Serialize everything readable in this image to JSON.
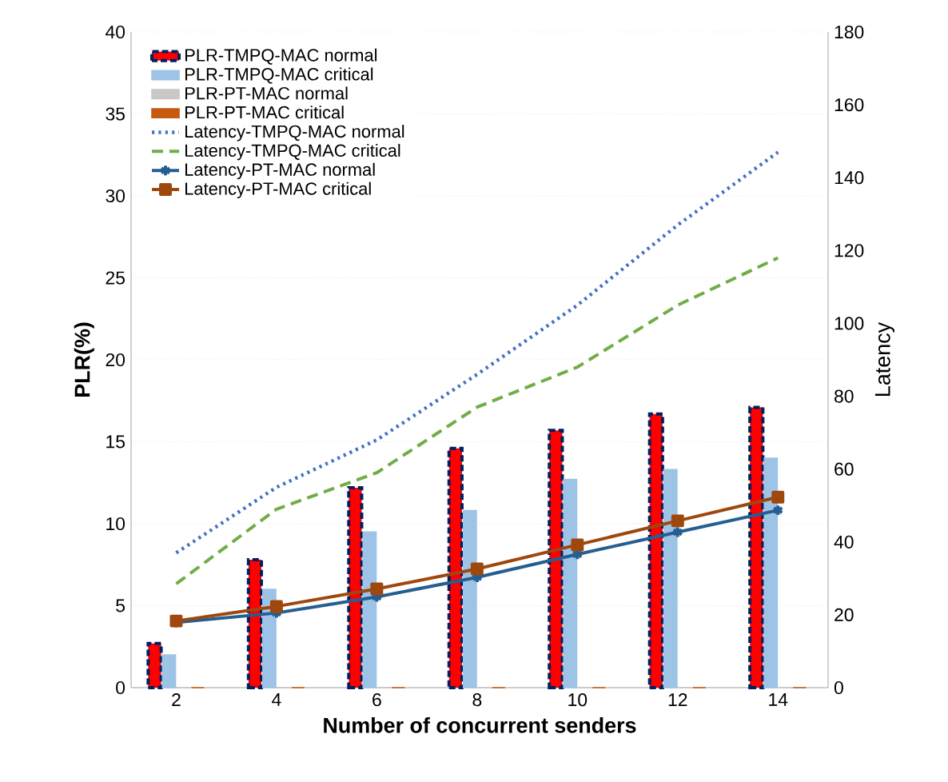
{
  "chart_data": {
    "type": "bar",
    "xlabel": "Number of concurrent senders",
    "ylabel": "PLR(%)",
    "y2label": "Latency",
    "categories": [
      "2",
      "4",
      "6",
      "8",
      "10",
      "12",
      "14"
    ],
    "ylim": [
      0,
      40
    ],
    "yticks": [
      0,
      5,
      10,
      15,
      20,
      25,
      30,
      35,
      40
    ],
    "y2lim": [
      0,
      180
    ],
    "y2ticks": [
      0,
      20,
      40,
      60,
      80,
      100,
      120,
      140,
      160,
      180
    ],
    "grid": "y",
    "legend": "top left",
    "series": [
      {
        "name": "PLR-TMPQ-MAC normal",
        "color": "#ff0000",
        "values": [
          2.7,
          7.8,
          12.2,
          14.6,
          15.7,
          16.7,
          17.1
        ]
      },
      {
        "name": "PLR-TMPQ-MAC critical",
        "color": "#9dc3e6",
        "values": [
          2.0,
          6.0,
          9.5,
          10.8,
          12.7,
          13.3,
          14.0
        ]
      },
      {
        "name": "PLR-PT-MAC normal",
        "color": "#c8c8c8",
        "values": [
          0,
          0,
          0,
          0,
          0,
          0,
          0
        ]
      },
      {
        "name": "PLR-PT-MAC critical",
        "color": "#c55a11",
        "values": [
          0,
          0,
          0,
          0,
          0,
          0,
          0
        ]
      },
      {
        "name": "Latency-TMPQ-MAC normal",
        "type": "line",
        "axis": "y2",
        "color": "#4472c4",
        "line_style": "dotted",
        "marker": "none",
        "values": [
          37,
          55,
          68,
          86,
          105,
          127,
          147
        ]
      },
      {
        "name": "Latency-TMPQ-MAC critical",
        "type": "line",
        "axis": "y2",
        "color": "#70ad47",
        "line_style": "dashed",
        "marker": "none",
        "values": [
          28.5,
          49,
          59,
          77,
          88,
          105,
          118
        ]
      },
      {
        "name": "Latency-PT-MAC normal",
        "type": "line",
        "axis": "y2",
        "color": "#255e91",
        "line_style": "solid",
        "marker": "cross",
        "values": [
          17.9,
          20.5,
          24.9,
          30.3,
          36.6,
          42.7,
          48.7
        ]
      },
      {
        "name": "Latency-PT-MAC critical",
        "type": "line",
        "axis": "y2",
        "color": "#9e480e",
        "line_style": "solid",
        "marker": "square",
        "values": [
          18.3,
          22.3,
          27.1,
          32.6,
          39.2,
          45.8,
          52.3
        ]
      }
    ]
  }
}
